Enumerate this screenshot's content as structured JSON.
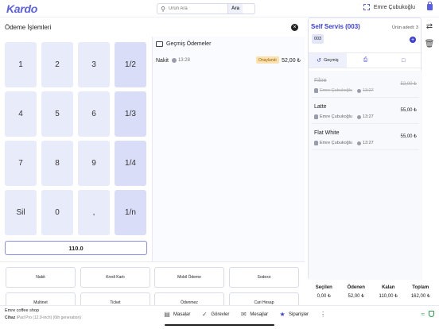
{
  "header": {
    "logo": "Kardo",
    "search_placeholder": "Ürün Ara",
    "search_button": "Ara",
    "user": "Emre Çubukoğlu"
  },
  "payment": {
    "title": "Ödeme İşlemleri",
    "keys": [
      {
        "label": "1",
        "frac": false
      },
      {
        "label": "2",
        "frac": false
      },
      {
        "label": "3",
        "frac": false
      },
      {
        "label": "1/2",
        "frac": true
      },
      {
        "label": "4",
        "frac": false
      },
      {
        "label": "5",
        "frac": false
      },
      {
        "label": "6",
        "frac": false
      },
      {
        "label": "1/3",
        "frac": true
      },
      {
        "label": "7",
        "frac": false
      },
      {
        "label": "8",
        "frac": false
      },
      {
        "label": "9",
        "frac": false
      },
      {
        "label": "1/4",
        "frac": true
      },
      {
        "label": "Sil",
        "frac": false
      },
      {
        "label": "0",
        "frac": false
      },
      {
        "label": ",",
        "frac": false
      },
      {
        "label": "1/n",
        "frac": true
      }
    ],
    "amount": "110.0",
    "history_title": "Geçmiş Ödemeler",
    "history": [
      {
        "method": "Nakit",
        "time": "13:28",
        "status": "Onaylandı",
        "amount": "52,00 ₺"
      }
    ],
    "methods": [
      "Nakit",
      "Kredi Kartı",
      "Mobil Ödeme",
      "Sodexo",
      "Multinet",
      "Ticket",
      "Ödenmez",
      "Cari Hesap"
    ]
  },
  "order": {
    "title": "Self Servis (003)",
    "item_count_label": "Ürün adedi: 3",
    "table": "003",
    "tabs": [
      {
        "label": "Geçmiş",
        "icon": "history-icon"
      },
      {
        "label": "",
        "icon": "printer-icon"
      },
      {
        "label": "",
        "icon": "note-icon"
      }
    ],
    "items": [
      {
        "name": "Filtre",
        "user": "Emre Çubukoğlu",
        "time": "13:27",
        "price": "52,00 ₺",
        "cancelled": true
      },
      {
        "name": "Latte",
        "user": "Emre Çubukoğlu",
        "time": "13:27",
        "price": "55,00 ₺",
        "cancelled": false
      },
      {
        "name": "Flat White",
        "user": "Emre Çubukoğlu",
        "time": "13:27",
        "price": "55,00 ₺",
        "cancelled": false
      }
    ],
    "totals": [
      {
        "label": "Seçilen",
        "value": "0,00 ₺"
      },
      {
        "label": "Ödenen",
        "value": "52,00 ₺"
      },
      {
        "label": "Kalan",
        "value": "110,00 ₺"
      },
      {
        "label": "Toplam",
        "value": "162,00 ₺"
      }
    ]
  },
  "footer": {
    "shop": "Emre coffee shop",
    "device_label": "Cihaz",
    "device": "iPad Pro (12.9-inch) (6th generation)",
    "nav": [
      {
        "label": "Masalar",
        "icon": "tables-icon"
      },
      {
        "label": "Görevler",
        "icon": "tasks-icon"
      },
      {
        "label": "Mesajlar",
        "icon": "messages-icon"
      },
      {
        "label": "Siparişler",
        "icon": "orders-icon"
      }
    ]
  },
  "colors": {
    "accent": "#3b3fd6",
    "key_bg": "#e8ebfa",
    "success": "#2a9d4a",
    "badge": "#fbe1b0"
  }
}
